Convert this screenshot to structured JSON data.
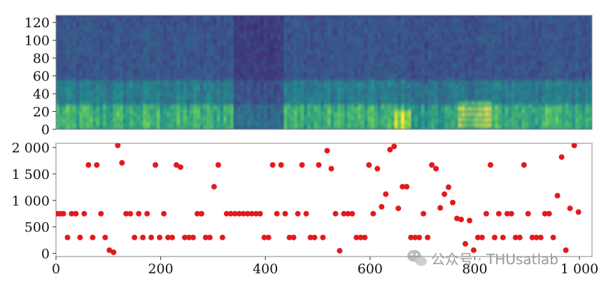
{
  "chart_data": [
    {
      "type": "heatmap",
      "ylim": [
        0,
        128
      ],
      "yticks": [
        "0",
        "20",
        "40",
        "60",
        "80",
        "100",
        "120"
      ],
      "ytick_values": [
        0,
        20,
        40,
        60,
        80,
        100,
        120
      ],
      "xlim": [
        0,
        1024
      ],
      "colormap": [
        "#440154",
        "#3b528b",
        "#21918c",
        "#5ec962",
        "#fde725"
      ]
    },
    {
      "type": "scatter",
      "marker_color": "#e31a1c",
      "xlim": [
        0,
        1024
      ],
      "ylim": [
        -60,
        2080
      ],
      "xticks": [
        "0",
        "200",
        "400",
        "600",
        "800",
        "1 000"
      ],
      "xtick_values": [
        0,
        200,
        400,
        600,
        800,
        1000
      ],
      "yticks": [
        "0",
        "500",
        "1 000",
        "1 500",
        "2 000"
      ],
      "ytick_values": [
        0,
        500,
        1000,
        1500,
        2000
      ],
      "points": [
        [
          2,
          750
        ],
        [
          8,
          750
        ],
        [
          14,
          750
        ],
        [
          22,
          300
        ],
        [
          30,
          750
        ],
        [
          38,
          750
        ],
        [
          46,
          300
        ],
        [
          54,
          750
        ],
        [
          62,
          1670
        ],
        [
          70,
          300
        ],
        [
          78,
          1670
        ],
        [
          86,
          750
        ],
        [
          94,
          300
        ],
        [
          102,
          60
        ],
        [
          110,
          20
        ],
        [
          118,
          2040
        ],
        [
          126,
          1710
        ],
        [
          134,
          750
        ],
        [
          142,
          750
        ],
        [
          150,
          300
        ],
        [
          158,
          750
        ],
        [
          166,
          300
        ],
        [
          174,
          750
        ],
        [
          182,
          300
        ],
        [
          190,
          1670
        ],
        [
          198,
          300
        ],
        [
          206,
          750
        ],
        [
          214,
          300
        ],
        [
          222,
          300
        ],
        [
          230,
          1670
        ],
        [
          238,
          1630
        ],
        [
          246,
          300
        ],
        [
          254,
          300
        ],
        [
          262,
          300
        ],
        [
          270,
          750
        ],
        [
          278,
          750
        ],
        [
          286,
          300
        ],
        [
          294,
          300
        ],
        [
          302,
          1260
        ],
        [
          310,
          1670
        ],
        [
          318,
          300
        ],
        [
          326,
          750
        ],
        [
          334,
          750
        ],
        [
          342,
          750
        ],
        [
          350,
          750
        ],
        [
          358,
          750
        ],
        [
          366,
          750
        ],
        [
          374,
          750
        ],
        [
          382,
          750
        ],
        [
          390,
          750
        ],
        [
          398,
          300
        ],
        [
          406,
          300
        ],
        [
          414,
          1670
        ],
        [
          422,
          750
        ],
        [
          430,
          1670
        ],
        [
          438,
          750
        ],
        [
          446,
          300
        ],
        [
          454,
          300
        ],
        [
          462,
          750
        ],
        [
          470,
          1670
        ],
        [
          478,
          750
        ],
        [
          486,
          300
        ],
        [
          494,
          300
        ],
        [
          502,
          1670
        ],
        [
          510,
          300
        ],
        [
          518,
          1940
        ],
        [
          526,
          1600
        ],
        [
          534,
          750
        ],
        [
          542,
          50
        ],
        [
          550,
          750
        ],
        [
          558,
          750
        ],
        [
          566,
          750
        ],
        [
          574,
          300
        ],
        [
          582,
          300
        ],
        [
          590,
          300
        ],
        [
          598,
          1670
        ],
        [
          606,
          750
        ],
        [
          614,
          1600
        ],
        [
          622,
          880
        ],
        [
          630,
          1120
        ],
        [
          638,
          1960
        ],
        [
          646,
          2020
        ],
        [
          654,
          850
        ],
        [
          662,
          1260
        ],
        [
          670,
          1260
        ],
        [
          678,
          300
        ],
        [
          686,
          300
        ],
        [
          694,
          300
        ],
        [
          702,
          750
        ],
        [
          710,
          300
        ],
        [
          718,
          1670
        ],
        [
          726,
          1600
        ],
        [
          734,
          860
        ],
        [
          742,
          1120
        ],
        [
          750,
          1250
        ],
        [
          758,
          960
        ],
        [
          766,
          660
        ],
        [
          774,
          640
        ],
        [
          782,
          180
        ],
        [
          790,
          620
        ],
        [
          798,
          60
        ],
        [
          806,
          300
        ],
        [
          814,
          300
        ],
        [
          822,
          750
        ],
        [
          830,
          1670
        ],
        [
          838,
          300
        ],
        [
          846,
          750
        ],
        [
          854,
          300
        ],
        [
          862,
          750
        ],
        [
          870,
          750
        ],
        [
          878,
          300
        ],
        [
          886,
          300
        ],
        [
          894,
          1670
        ],
        [
          902,
          750
        ],
        [
          910,
          300
        ],
        [
          918,
          300
        ],
        [
          926,
          300
        ],
        [
          934,
          750
        ],
        [
          942,
          750
        ],
        [
          950,
          300
        ],
        [
          958,
          1090
        ],
        [
          966,
          1820
        ],
        [
          974,
          60
        ],
        [
          982,
          850
        ],
        [
          990,
          2040
        ],
        [
          998,
          780
        ]
      ]
    }
  ],
  "watermark": {
    "icon": "wechat-icon",
    "text": "公众号 · THUsatlab"
  }
}
